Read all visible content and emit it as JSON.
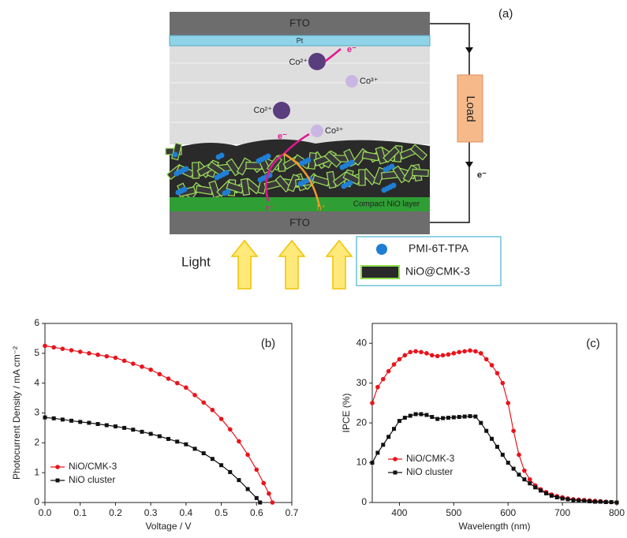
{
  "diagram": {
    "panel_label": "(a)",
    "labels": [
      "FTO",
      "Pt",
      "Co²⁺",
      "e⁻",
      "Co³⁺",
      "Co²⁺",
      "e⁻",
      "Co³⁺",
      "Load",
      "e⁻",
      "Compact NiO layer",
      "e⁻",
      "h⁺",
      "FTO",
      "Light"
    ],
    "legend": [
      "PMI-6T-TPA",
      "NiO@CMK-3"
    ]
  },
  "chart_data": [
    {
      "type": "line",
      "panel_label": "(b)",
      "x_label": "Voltage / V",
      "y_label": "Photocurrent Density / mA cm⁻²",
      "xlim": [
        0,
        0.7
      ],
      "xticks": [
        {
          "value": 0,
          "label": "0.0"
        },
        0.1,
        0.2,
        0.3,
        0.4,
        0.5,
        0.6,
        0.7
      ],
      "ylim": [
        0,
        6
      ],
      "yticks": [
        0,
        1,
        2,
        3,
        4,
        5,
        6
      ],
      "legend": "lower left",
      "series": [
        {
          "name": "NiO/CMK-3",
          "color": "#e8141c",
          "marker": "circle",
          "x": [
            0,
            0.025,
            0.05,
            0.075,
            0.1,
            0.125,
            0.15,
            0.175,
            0.2,
            0.225,
            0.25,
            0.275,
            0.3,
            0.325,
            0.35,
            0.375,
            0.4,
            0.425,
            0.45,
            0.475,
            0.5,
            0.525,
            0.55,
            0.575,
            0.6,
            0.62,
            0.635,
            0.645
          ],
          "values": [
            5.25,
            5.2,
            5.15,
            5.1,
            5.05,
            5.0,
            4.95,
            4.9,
            4.85,
            4.75,
            4.65,
            4.55,
            4.45,
            4.3,
            4.15,
            4.0,
            3.85,
            3.6,
            3.35,
            3.1,
            2.8,
            2.45,
            2.05,
            1.6,
            1.1,
            0.65,
            0.3,
            0
          ]
        },
        {
          "name": "NiO cluster",
          "color": "#111111",
          "marker": "square",
          "x": [
            0,
            0.025,
            0.05,
            0.075,
            0.1,
            0.125,
            0.15,
            0.175,
            0.2,
            0.225,
            0.25,
            0.275,
            0.3,
            0.325,
            0.35,
            0.375,
            0.4,
            0.425,
            0.45,
            0.475,
            0.5,
            0.525,
            0.55,
            0.575,
            0.6,
            0.61
          ],
          "values": [
            2.85,
            2.82,
            2.78,
            2.74,
            2.7,
            2.67,
            2.63,
            2.59,
            2.55,
            2.5,
            2.44,
            2.37,
            2.3,
            2.22,
            2.13,
            2.04,
            1.95,
            1.8,
            1.65,
            1.46,
            1.25,
            1.02,
            0.75,
            0.45,
            0.15,
            0
          ]
        }
      ]
    },
    {
      "type": "line",
      "panel_label": "(c)",
      "x_label": "Wavelength (nm)",
      "y_label": "IPCE (%)",
      "xlim": [
        350,
        800
      ],
      "xticks": [
        400,
        500,
        600,
        700,
        800
      ],
      "ylim": [
        0,
        45
      ],
      "yticks": [
        0,
        10,
        20,
        30,
        40
      ],
      "legend": "lower left",
      "x": [
        350,
        360,
        370,
        380,
        390,
        400,
        410,
        420,
        430,
        440,
        450,
        460,
        470,
        480,
        490,
        500,
        510,
        520,
        530,
        540,
        550,
        560,
        570,
        580,
        590,
        600,
        610,
        620,
        630,
        640,
        650,
        660,
        670,
        680,
        690,
        700,
        710,
        720,
        730,
        740,
        750,
        760,
        770,
        780,
        790,
        800
      ],
      "series": [
        {
          "name": "NiO/CMK-3",
          "color": "#e8141c",
          "marker": "circle",
          "values": [
            25,
            29,
            31,
            33,
            34.7,
            36,
            37,
            37.8,
            38,
            37.8,
            37.5,
            37,
            36.8,
            37,
            37.2,
            37.5,
            37.8,
            38,
            38.2,
            38,
            37.5,
            36,
            34.5,
            32.5,
            30,
            25,
            18,
            12,
            8,
            5.8,
            4.3,
            3.3,
            2.6,
            2,
            1.6,
            1.3,
            1.0,
            0.8,
            0.7,
            0.6,
            0.5,
            0.4,
            0.3,
            0.2,
            0.1,
            0
          ]
        },
        {
          "name": "NiO cluster",
          "color": "#111111",
          "marker": "square",
          "values": [
            10,
            12.5,
            14.5,
            16.5,
            18.5,
            20.5,
            21.3,
            21.8,
            22.2,
            22.2,
            22,
            21.5,
            21,
            21.2,
            21.3,
            21.4,
            21.5,
            21.6,
            21.7,
            21.6,
            20,
            18,
            16,
            14,
            12,
            10,
            8.5,
            7,
            5.8,
            4.8,
            3.8,
            3,
            2.3,
            1.7,
            1.3,
            1,
            0.8,
            0.6,
            0.5,
            0.4,
            0.3,
            0.2,
            0.2,
            0.1,
            0.1,
            0
          ]
        }
      ]
    }
  ]
}
